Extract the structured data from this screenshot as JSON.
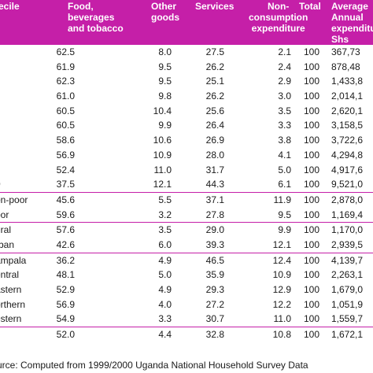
{
  "header": {
    "decile": "ecile",
    "food": [
      "Food,",
      "beverages",
      "and tobacco"
    ],
    "other": [
      "Other",
      "goods"
    ],
    "services": "Services",
    "nonconsumption": [
      "Non-",
      "consumption",
      "expenditure"
    ],
    "total": "Total",
    "average": [
      "Average",
      "Annual",
      "expenditu",
      "Shs"
    ]
  },
  "groups": [
    {
      "rows": [
        {
          "label": "",
          "food": "62.5",
          "other": "8.0",
          "services": "27.5",
          "non": "2.1",
          "total": "100",
          "avg": "367,73"
        },
        {
          "label": "",
          "food": "61.9",
          "other": "9.5",
          "services": "26.2",
          "non": "2.4",
          "total": "100",
          "avg": "878,48"
        },
        {
          "label": "",
          "food": "62.3",
          "other": "9.5",
          "services": "25.1",
          "non": "2.9",
          "total": "100",
          "avg": "1,433,8"
        },
        {
          "label": "",
          "food": "61.0",
          "other": "9.8",
          "services": "26.2",
          "non": "3.0",
          "total": "100",
          "avg": "2,014,1"
        },
        {
          "label": "",
          "food": "60.5",
          "other": "10.4",
          "services": "25.6",
          "non": "3.5",
          "total": "100",
          "avg": "2,620,1"
        },
        {
          "label": "",
          "food": "60.5",
          "other": "9.9",
          "services": "26.4",
          "non": "3.3",
          "total": "100",
          "avg": "3,158,5"
        },
        {
          "label": "",
          "food": "58.6",
          "other": "10.6",
          "services": "26.9",
          "non": "3.8",
          "total": "100",
          "avg": "3,722,6"
        },
        {
          "label": "",
          "food": "56.9",
          "other": "10.9",
          "services": "28.0",
          "non": "4.1",
          "total": "100",
          "avg": "4,294,8"
        },
        {
          "label": "",
          "food": "52.4",
          "other": "11.0",
          "services": "31.7",
          "non": "5.0",
          "total": "100",
          "avg": "4,917,6"
        },
        {
          "label": "0",
          "food": "37.5",
          "other": "12.1",
          "services": "44.3",
          "non": "6.1",
          "total": "100",
          "avg": "9,521,0"
        }
      ]
    },
    {
      "rows": [
        {
          "label": "on-poor",
          "food": "45.6",
          "other": "5.5",
          "services": "37.1",
          "non": "11.9",
          "total": "100",
          "avg": "2,878,0"
        },
        {
          "label": "oor",
          "food": "59.6",
          "other": "3.2",
          "services": "27.8",
          "non": "9.5",
          "total": "100",
          "avg": "1,169,4"
        }
      ]
    },
    {
      "rows": [
        {
          "label": "ural",
          "food": "57.6",
          "other": "3.5",
          "services": "29.0",
          "non": "9.9",
          "total": "100",
          "avg": "1,170,0"
        },
        {
          "label": "rban",
          "food": "42.6",
          "other": "6.0",
          "services": "39.3",
          "non": "12.1",
          "total": "100",
          "avg": "2,939,5"
        }
      ]
    },
    {
      "rows": [
        {
          "label": "ampala",
          "food": "36.2",
          "other": "4.9",
          "services": "46.5",
          "non": "12.4",
          "total": "100",
          "avg": "4,139,7"
        },
        {
          "label": "entral",
          "food": "48.1",
          "other": "5.0",
          "services": "35.9",
          "non": "10.9",
          "total": "100",
          "avg": "2,263,1"
        },
        {
          "label": "astern",
          "food": "52.9",
          "other": "4.9",
          "services": "29.3",
          "non": "12.9",
          "total": "100",
          "avg": "1,679,0"
        },
        {
          "label": "orthern",
          "food": "56.9",
          "other": "4.0",
          "services": "27.2",
          "non": "12.2",
          "total": "100",
          "avg": "1,051,9"
        },
        {
          "label": "estern",
          "food": "54.9",
          "other": "3.3",
          "services": "30.7",
          "non": "11.0",
          "total": "100",
          "avg": "1,559,7"
        }
      ]
    },
    {
      "rows": [
        {
          "label": "l",
          "food": "52.0",
          "other": "4.4",
          "services": "32.8",
          "non": "10.8",
          "total": "100",
          "avg": "1,672,1"
        }
      ]
    }
  ],
  "source": "urce: Computed from 1999/2000 Uganda National Household Survey Data"
}
